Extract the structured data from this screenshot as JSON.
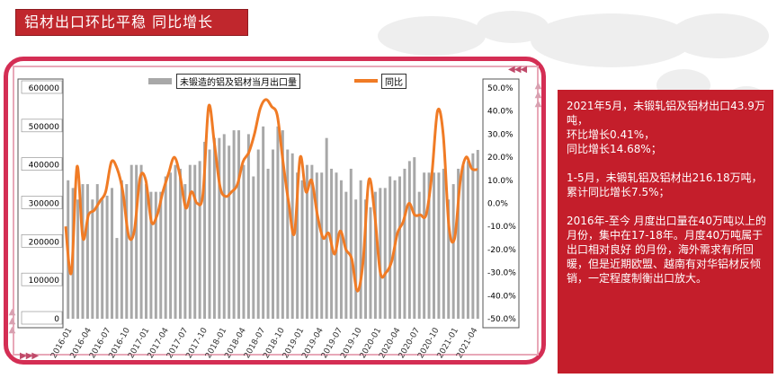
{
  "header": {
    "title": "铝材出口环比平稳  同比增长"
  },
  "legend": {
    "bar_label": "未锻造的铝及铝材当月出口量",
    "line_label": "同比"
  },
  "info_panel": {
    "paragraphs": [
      "2021年5月，未锻轧铝及铝材出口43.9万吨，\n环比增长0.41%，\n同比增长14.68%；",
      "1-5月，未锻轧铝及铝材出216.18万吨，\n累计同比增长7.5%；",
      "2016年-至今 月度出口量在40万吨以上的月份，集中在17-18年。月度40万吨属于出口相对良好 的月份，海外需求有所回暖，但是近期欧盟、越南有对华铝材反倾销，一定程度制衡出口放大。"
    ]
  },
  "colors": {
    "bar": "#a8a8a8",
    "line": "#f07b25",
    "frame": "#d42e54",
    "panel": "#c41e2b"
  },
  "chart_data": {
    "type": "bar+line",
    "left_axis": {
      "ticks": [
        "600000",
        "500000",
        "400000",
        "300000",
        "200000",
        "100000",
        "0"
      ],
      "ylim": [
        0,
        600000
      ]
    },
    "right_axis": {
      "ticks": [
        "50.0%",
        "40.0%",
        "30.0%",
        "20.0%",
        "10.0%",
        "0.0%",
        "-10.0%",
        "-20.0%",
        "-30.0%",
        "-40.0%",
        "-50.0%"
      ],
      "ylim": [
        -50,
        50
      ]
    },
    "x_tick_labels": [
      "2016-01",
      "2016-04",
      "2016-07",
      "2016-10",
      "2017-01",
      "2017-04",
      "2017-07",
      "2017-10",
      "2018-01",
      "2018-04",
      "2018-07",
      "2018-10",
      "2019-01",
      "2019-04",
      "2019-07",
      "2019-10",
      "2020-01",
      "2020-04",
      "2020-07",
      "2020-10",
      "2021-01",
      "2021-04"
    ],
    "series": [
      {
        "name": "未锻造的铝及铝材当月出口量",
        "kind": "bar",
        "values": [
          360000,
          340000,
          310000,
          350000,
          350000,
          310000,
          350000,
          310000,
          320000,
          340000,
          210000,
          360000,
          350000,
          400000,
          400000,
          400000,
          350000,
          330000,
          330000,
          330000,
          370000,
          380000,
          400000,
          390000,
          350000,
          400000,
          400000,
          410000,
          460000,
          440000,
          470000,
          470000,
          480000,
          450000,
          490000,
          490000,
          400000,
          480000,
          370000,
          440000,
          500000,
          390000,
          440000,
          500000,
          490000,
          440000,
          430000,
          380000,
          360000,
          400000,
          400000,
          380000,
          380000,
          470000,
          390000,
          380000,
          360000,
          330000,
          390000,
          310000,
          360000,
          310000,
          290000,
          330000,
          340000,
          340000,
          370000,
          360000,
          370000,
          390000,
          410000,
          420000,
          330000,
          380000,
          380000,
          380000,
          380000,
          390000,
          310000,
          350000,
          390000,
          400000,
          410000,
          430000,
          439000
        ]
      },
      {
        "name": "同比",
        "kind": "line",
        "values": [
          -10,
          -30,
          16,
          -15,
          -5,
          -3,
          1,
          5,
          18,
          15,
          5,
          -14,
          -12,
          11,
          10,
          -8,
          -5,
          5,
          13,
          20,
          12,
          -2,
          5,
          0,
          4,
          42,
          26,
          7,
          3,
          5,
          8,
          18,
          22,
          30,
          41,
          45,
          42,
          38,
          18,
          0,
          -13,
          20,
          5,
          10,
          -5,
          -15,
          -13,
          -22,
          -12,
          -20,
          -24,
          -38,
          -25,
          10,
          -4,
          -30,
          -30,
          -25,
          -13,
          -8,
          0,
          -5,
          -5,
          -5,
          12,
          40,
          30,
          -10,
          -15,
          10,
          20,
          15,
          14.68
        ]
      }
    ]
  }
}
